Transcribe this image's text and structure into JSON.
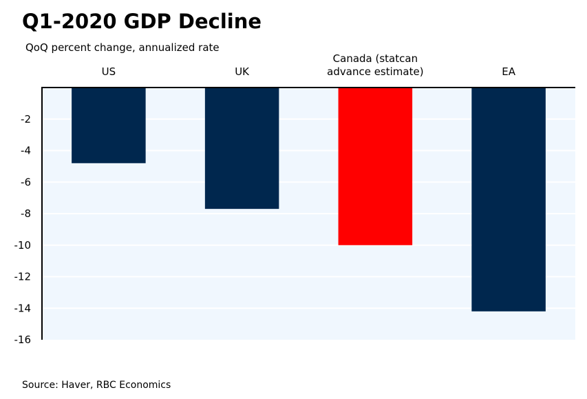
{
  "chart_data": {
    "type": "bar",
    "title": "Q1-2020 GDP Decline",
    "subtitle": "QoQ percent change, annualized rate",
    "source": "Source: Haver,  RBC Economics",
    "categories": [
      "US",
      "UK",
      "Canada (statcan advance estimate)",
      "EA"
    ],
    "category_label_lines": [
      [
        "US"
      ],
      [
        "UK"
      ],
      [
        "Canada (statcan",
        "advance estimate)"
      ],
      [
        "EA"
      ]
    ],
    "values": [
      -4.8,
      -7.7,
      -10.0,
      -14.2
    ],
    "bar_colors": [
      "#00274e",
      "#00274e",
      "#ff0000",
      "#00274e"
    ],
    "ylim": [
      -16,
      0
    ],
    "yticks": [
      -2,
      -4,
      -6,
      -8,
      -10,
      -12,
      -14,
      -16
    ],
    "xlabel": "",
    "ylabel": "",
    "grid": true,
    "plot_background": "#f0f7fe"
  }
}
